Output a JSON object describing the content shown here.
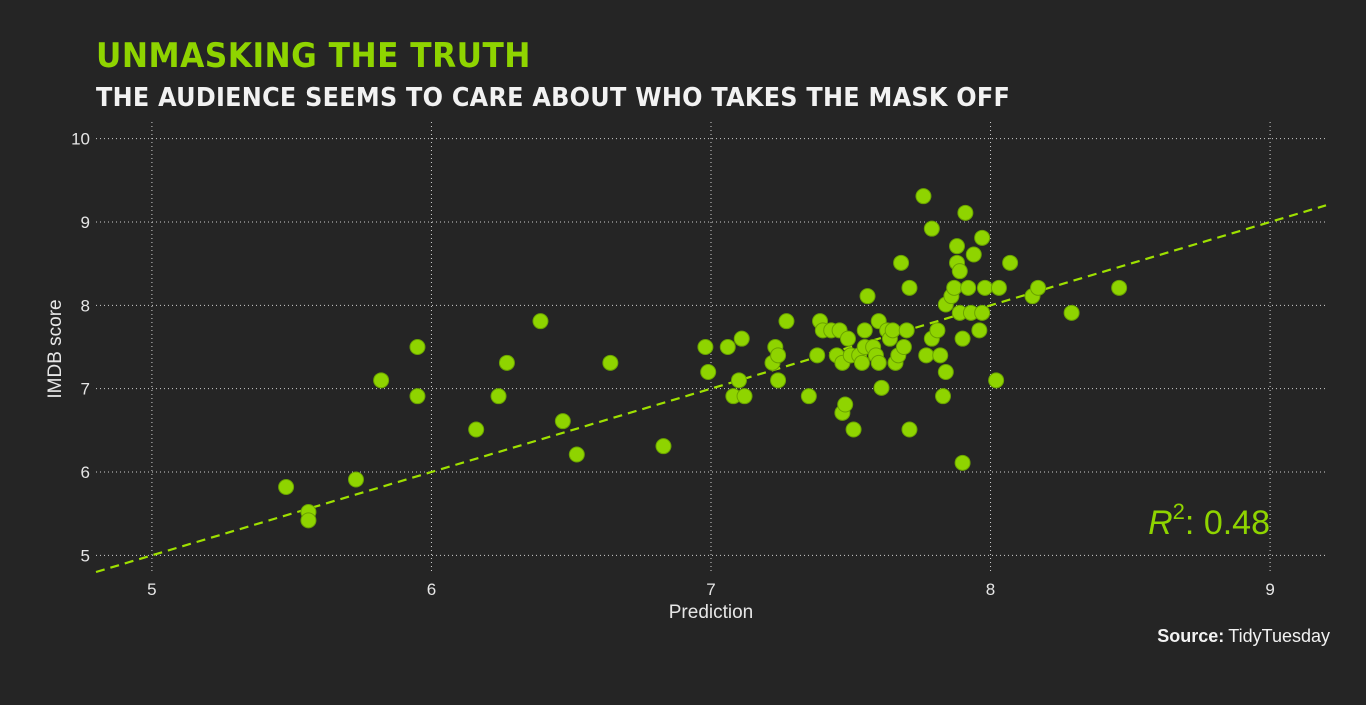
{
  "title": "Unmasking the truth",
  "subtitle": "The audience seems to care about who takes the mask off",
  "source": {
    "label": "Source:",
    "value": "TidyTuesday"
  },
  "colors": {
    "background": "#252525",
    "accent": "#8fd400",
    "point": "#8fd400",
    "text": "#e6e6e6"
  },
  "chart_data": {
    "type": "scatter",
    "xlabel": "Prediction",
    "ylabel": "IMDB score",
    "xlim": [
      4.8,
      9.2
    ],
    "ylim": [
      4.8,
      10.2
    ],
    "xticks": [
      5,
      6,
      7,
      8,
      9
    ],
    "yticks": [
      5,
      6,
      7,
      8,
      9,
      10
    ],
    "grid": true,
    "annotation": {
      "r2_symbol": "R",
      "r2_exp": "2",
      "r2_sep": ": ",
      "r2_value": "0.48"
    },
    "trendline": {
      "x": [
        4.8,
        9.2
      ],
      "y": [
        4.8,
        9.2
      ],
      "style": "dashed"
    },
    "points": [
      {
        "x": 5.48,
        "y": 5.82
      },
      {
        "x": 5.56,
        "y": 5.52
      },
      {
        "x": 5.56,
        "y": 5.42
      },
      {
        "x": 5.73,
        "y": 5.91
      },
      {
        "x": 5.82,
        "y": 7.1
      },
      {
        "x": 5.95,
        "y": 7.5
      },
      {
        "x": 5.95,
        "y": 6.91
      },
      {
        "x": 6.16,
        "y": 6.51
      },
      {
        "x": 6.24,
        "y": 6.91
      },
      {
        "x": 6.27,
        "y": 7.31
      },
      {
        "x": 6.39,
        "y": 7.81
      },
      {
        "x": 6.47,
        "y": 6.61
      },
      {
        "x": 6.52,
        "y": 6.21
      },
      {
        "x": 6.64,
        "y": 7.31
      },
      {
        "x": 6.83,
        "y": 6.31
      },
      {
        "x": 6.98,
        "y": 7.5
      },
      {
        "x": 6.99,
        "y": 7.2
      },
      {
        "x": 7.06,
        "y": 7.5
      },
      {
        "x": 7.08,
        "y": 6.91
      },
      {
        "x": 7.1,
        "y": 7.1
      },
      {
        "x": 7.11,
        "y": 7.6
      },
      {
        "x": 7.12,
        "y": 6.91
      },
      {
        "x": 7.22,
        "y": 7.31
      },
      {
        "x": 7.23,
        "y": 7.5
      },
      {
        "x": 7.24,
        "y": 7.4
      },
      {
        "x": 7.24,
        "y": 7.1
      },
      {
        "x": 7.27,
        "y": 7.81
      },
      {
        "x": 7.35,
        "y": 6.91
      },
      {
        "x": 7.38,
        "y": 7.4
      },
      {
        "x": 7.39,
        "y": 7.81
      },
      {
        "x": 7.4,
        "y": 7.7
      },
      {
        "x": 7.43,
        "y": 7.7
      },
      {
        "x": 7.45,
        "y": 7.4
      },
      {
        "x": 7.46,
        "y": 7.7
      },
      {
        "x": 7.47,
        "y": 7.31
      },
      {
        "x": 7.47,
        "y": 6.71
      },
      {
        "x": 7.48,
        "y": 6.81
      },
      {
        "x": 7.49,
        "y": 7.6
      },
      {
        "x": 7.5,
        "y": 7.4
      },
      {
        "x": 7.51,
        "y": 6.51
      },
      {
        "x": 7.53,
        "y": 7.4
      },
      {
        "x": 7.54,
        "y": 7.31
      },
      {
        "x": 7.55,
        "y": 7.5
      },
      {
        "x": 7.55,
        "y": 7.7
      },
      {
        "x": 7.56,
        "y": 8.11
      },
      {
        "x": 7.58,
        "y": 7.5
      },
      {
        "x": 7.59,
        "y": 7.4
      },
      {
        "x": 7.6,
        "y": 7.31
      },
      {
        "x": 7.6,
        "y": 7.81
      },
      {
        "x": 7.61,
        "y": 7.01
      },
      {
        "x": 7.63,
        "y": 7.7
      },
      {
        "x": 7.64,
        "y": 7.6
      },
      {
        "x": 7.65,
        "y": 7.7
      },
      {
        "x": 7.66,
        "y": 7.31
      },
      {
        "x": 7.67,
        "y": 7.4
      },
      {
        "x": 7.68,
        "y": 8.51
      },
      {
        "x": 7.69,
        "y": 7.5
      },
      {
        "x": 7.7,
        "y": 7.7
      },
      {
        "x": 7.71,
        "y": 8.21
      },
      {
        "x": 7.71,
        "y": 6.51
      },
      {
        "x": 7.76,
        "y": 9.31
      },
      {
        "x": 7.77,
        "y": 7.4
      },
      {
        "x": 7.79,
        "y": 8.92
      },
      {
        "x": 7.79,
        "y": 7.6
      },
      {
        "x": 7.81,
        "y": 7.7
      },
      {
        "x": 7.82,
        "y": 7.4
      },
      {
        "x": 7.83,
        "y": 6.91
      },
      {
        "x": 7.84,
        "y": 7.2
      },
      {
        "x": 7.84,
        "y": 8.01
      },
      {
        "x": 7.86,
        "y": 8.11
      },
      {
        "x": 7.87,
        "y": 8.21
      },
      {
        "x": 7.88,
        "y": 8.51
      },
      {
        "x": 7.88,
        "y": 8.71
      },
      {
        "x": 7.89,
        "y": 8.41
      },
      {
        "x": 7.89,
        "y": 7.91
      },
      {
        "x": 7.9,
        "y": 6.11
      },
      {
        "x": 7.9,
        "y": 7.6
      },
      {
        "x": 7.91,
        "y": 9.11
      },
      {
        "x": 7.92,
        "y": 8.21
      },
      {
        "x": 7.93,
        "y": 7.91
      },
      {
        "x": 7.94,
        "y": 8.61
      },
      {
        "x": 7.96,
        "y": 7.7
      },
      {
        "x": 7.97,
        "y": 8.81
      },
      {
        "x": 7.97,
        "y": 7.91
      },
      {
        "x": 7.98,
        "y": 8.21
      },
      {
        "x": 8.02,
        "y": 7.1
      },
      {
        "x": 8.03,
        "y": 8.21
      },
      {
        "x": 8.07,
        "y": 8.51
      },
      {
        "x": 8.15,
        "y": 8.11
      },
      {
        "x": 8.17,
        "y": 8.21
      },
      {
        "x": 8.29,
        "y": 7.91
      },
      {
        "x": 8.46,
        "y": 8.21
      }
    ]
  }
}
